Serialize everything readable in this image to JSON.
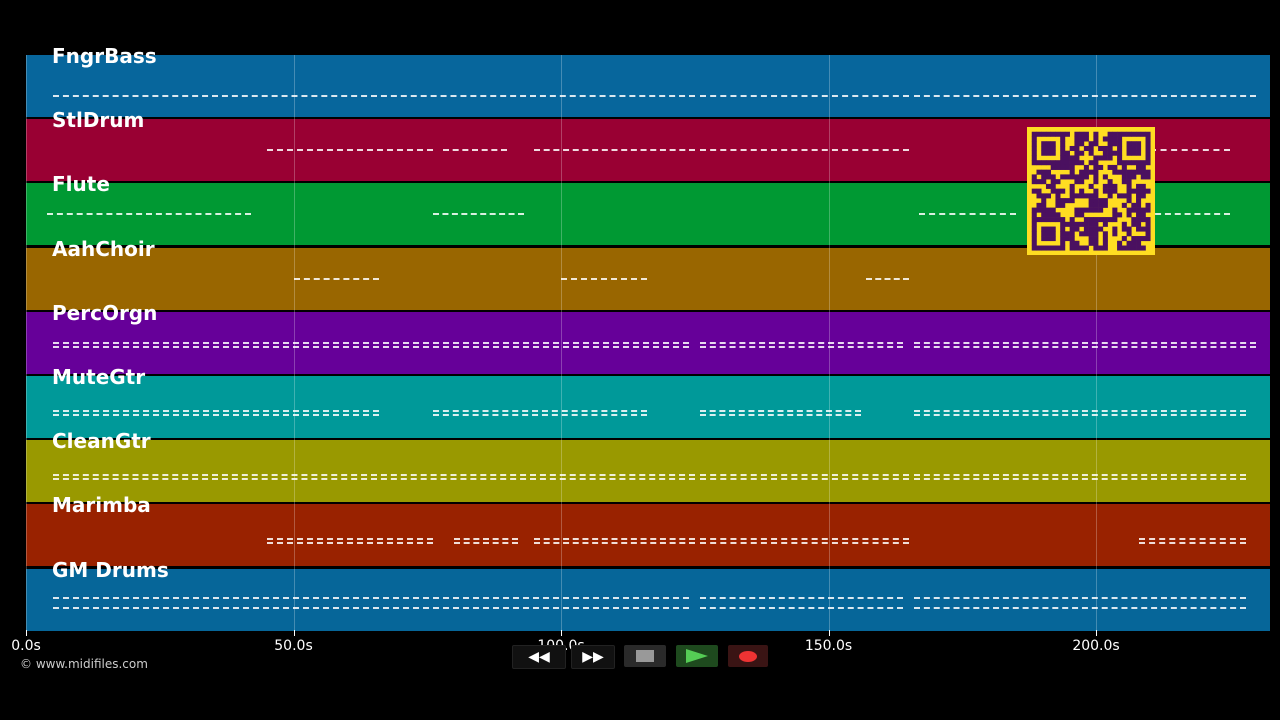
{
  "tracks": [
    {
      "name": "FngrBass",
      "color": "#07669c",
      "segments": [
        [
          5,
          125
        ],
        [
          126,
          165
        ],
        [
          166,
          230
        ]
      ]
    },
    {
      "name": "StlDrum",
      "color": "#990033",
      "segments": [
        [
          45,
          76
        ],
        [
          78,
          90
        ],
        [
          95,
          125
        ],
        [
          126,
          165
        ],
        [
          210,
          225
        ]
      ]
    },
    {
      "name": "Flute",
      "color": "#009933",
      "segments": [
        [
          4,
          42
        ],
        [
          76,
          93
        ],
        [
          167,
          185
        ],
        [
          200,
          225
        ]
      ]
    },
    {
      "name": "AahChoir",
      "color": "#996600",
      "segments": [
        [
          50,
          66
        ],
        [
          100,
          116
        ],
        [
          157,
          165
        ]
      ]
    },
    {
      "name": "PercOrgn",
      "color": "#660099",
      "segments": [
        [
          5,
          124
        ],
        [
          126,
          164
        ],
        [
          166,
          230
        ]
      ]
    },
    {
      "name": "MuteGtr",
      "color": "#009999",
      "segments": [
        [
          5,
          66
        ],
        [
          76,
          116
        ],
        [
          126,
          156
        ],
        [
          166,
          228
        ]
      ]
    },
    {
      "name": "CleanGtr",
      "color": "#999900",
      "segments": [
        [
          5,
          125
        ],
        [
          126,
          165
        ],
        [
          166,
          228
        ]
      ]
    },
    {
      "name": "Marimba",
      "color": "#992200",
      "segments": [
        [
          45,
          76
        ],
        [
          80,
          92
        ],
        [
          95,
          125
        ],
        [
          126,
          165
        ],
        [
          208,
          228
        ]
      ]
    },
    {
      "name": "GM Drums",
      "color": "#066699",
      "segments": [
        [
          5,
          124
        ],
        [
          126,
          164
        ],
        [
          166,
          228
        ]
      ]
    }
  ],
  "axis": {
    "ticks": [
      "0.0s",
      "50.0s",
      "100.0s",
      "150.0s",
      "200.0s"
    ],
    "tick_values": [
      0,
      50,
      100,
      150,
      200
    ],
    "max_seconds": 233
  },
  "copyright": "© www.midifiles.com",
  "controls": {
    "rewind": "◀◀",
    "fast_forward": "▶▶",
    "stop": "stop",
    "play": "play",
    "record": "record"
  }
}
